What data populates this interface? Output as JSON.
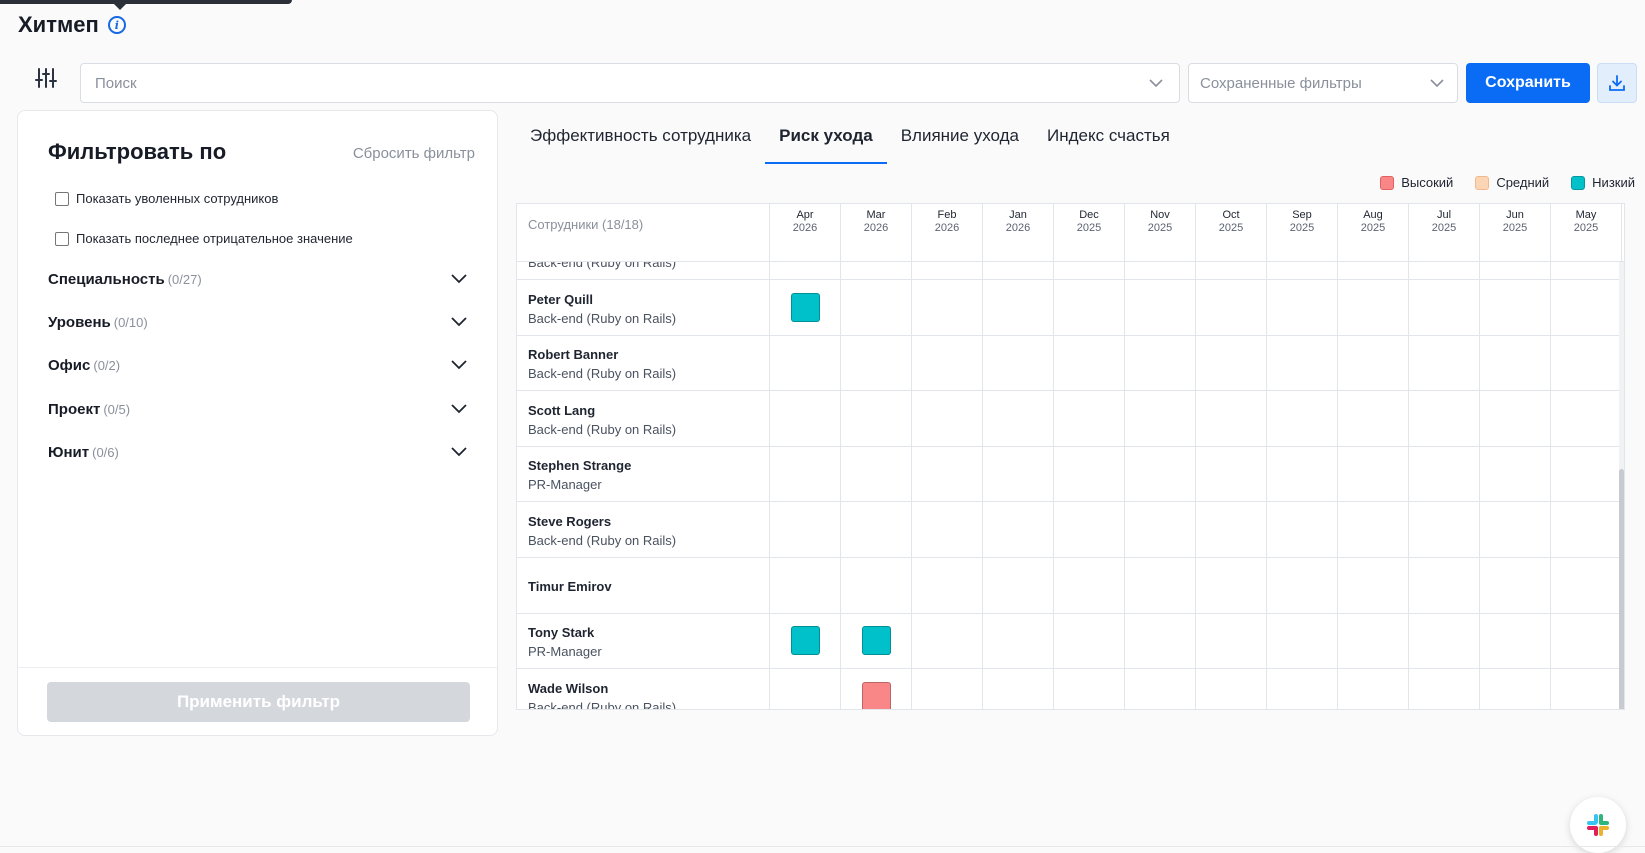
{
  "header": {
    "title": "Хитмеп"
  },
  "toolbar": {
    "search_placeholder": "Поиск",
    "saved_filters_placeholder": "Сохраненные фильтры",
    "save_label": "Сохранить"
  },
  "filters": {
    "heading": "Фильтровать по",
    "reset_label": "Сбросить фильтр",
    "checkboxes": [
      {
        "label": "Показать уволенных сотрудников",
        "checked": false
      },
      {
        "label": "Показать последнее отрицательное значение",
        "checked": false
      }
    ],
    "facets": [
      {
        "label": "Специальность",
        "count": "(0/27)"
      },
      {
        "label": "Уровень",
        "count": "(0/10)"
      },
      {
        "label": "Офис",
        "count": "(0/2)"
      },
      {
        "label": "Проект",
        "count": "(0/5)"
      },
      {
        "label": "Юнит",
        "count": "(0/6)"
      }
    ],
    "apply_label": "Применить фильтр"
  },
  "tabs": [
    {
      "label": "Эффективность сотрудника",
      "active": false
    },
    {
      "label": "Риск ухода",
      "active": true
    },
    {
      "label": "Влияние ухода",
      "active": false
    },
    {
      "label": "Индекс счастья",
      "active": false
    }
  ],
  "legend": [
    {
      "label": "Высокий",
      "color": "#f98787"
    },
    {
      "label": "Средний",
      "color": "#fcd5b5"
    },
    {
      "label": "Низкий",
      "color": "#00c1c9"
    }
  ],
  "heatmap": {
    "employees_header": "Сотрудники (18/18)",
    "months": [
      {
        "m": "Apr",
        "y": "2026"
      },
      {
        "m": "Mar",
        "y": "2026"
      },
      {
        "m": "Feb",
        "y": "2026"
      },
      {
        "m": "Jan",
        "y": "2026"
      },
      {
        "m": "Dec",
        "y": "2025"
      },
      {
        "m": "Nov",
        "y": "2025"
      },
      {
        "m": "Oct",
        "y": "2025"
      },
      {
        "m": "Sep",
        "y": "2025"
      },
      {
        "m": "Aug",
        "y": "2025"
      },
      {
        "m": "Jul",
        "y": "2025"
      },
      {
        "m": "Jun",
        "y": "2025"
      },
      {
        "m": "May",
        "y": "2025"
      }
    ],
    "rows": [
      {
        "name": "",
        "role": "Back-end (Ruby on Rails)",
        "risks": []
      },
      {
        "name": "Peter Quill",
        "role": "Back-end (Ruby on Rails)",
        "risks": [
          {
            "month": 0,
            "level": "low"
          }
        ]
      },
      {
        "name": "Robert Banner",
        "role": "Back-end (Ruby on Rails)",
        "risks": []
      },
      {
        "name": "Scott Lang",
        "role": "Back-end (Ruby on Rails)",
        "risks": []
      },
      {
        "name": "Stephen Strange",
        "role": "PR-Manager",
        "risks": []
      },
      {
        "name": "Steve Rogers",
        "role": "Back-end (Ruby on Rails)",
        "risks": []
      },
      {
        "name": "Timur Emirov",
        "role": "",
        "risks": []
      },
      {
        "name": "Tony Stark",
        "role": "PR-Manager",
        "risks": [
          {
            "month": 0,
            "level": "low"
          },
          {
            "month": 1,
            "level": "low"
          }
        ]
      },
      {
        "name": "Wade Wilson",
        "role": "Back-end (Ruby on Rails)",
        "risks": [
          {
            "month": 1,
            "level": "high"
          }
        ]
      }
    ]
  },
  "colors": {
    "high": "#f98787",
    "medium": "#fcd5b5",
    "low": "#00c1c9",
    "accent": "#0a6cf5"
  }
}
